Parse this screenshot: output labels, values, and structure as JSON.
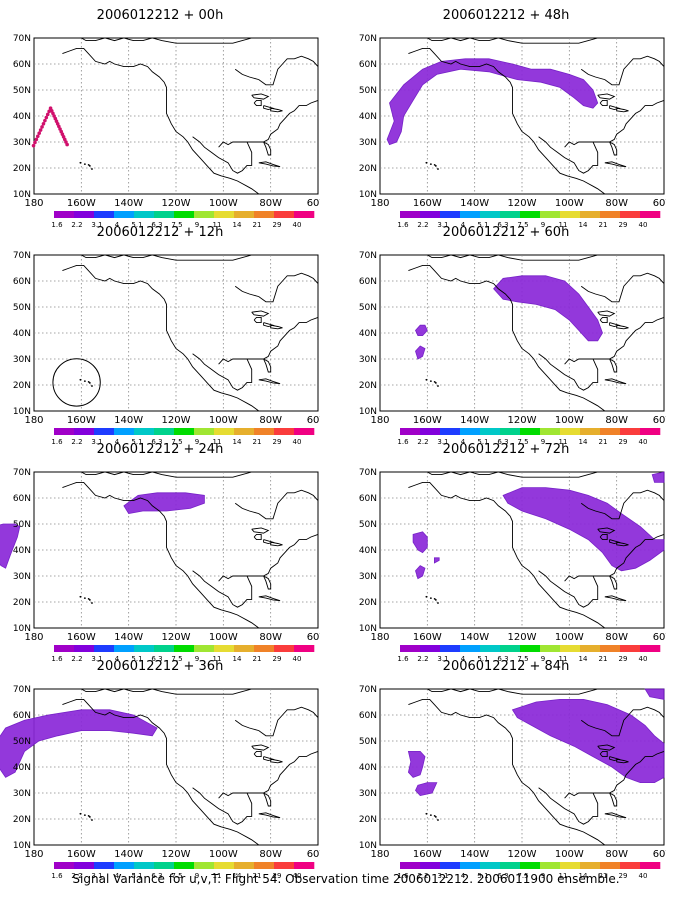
{
  "colorbar": {
    "labels": [
      "1.6",
      "2.2",
      "3.1",
      "4",
      "5.1",
      "6.3",
      "7.5",
      "9",
      "11",
      "14",
      "21",
      "29",
      "40"
    ],
    "colors": [
      "#a000c8",
      "#8200dc",
      "#1e3cff",
      "#00a0ff",
      "#00c8c8",
      "#00d28c",
      "#00dc00",
      "#a0e632",
      "#e6dc32",
      "#e6af2d",
      "#f08228",
      "#fa3c3c",
      "#f00082"
    ]
  },
  "map": {
    "lat_labels": [
      "70N",
      "60N",
      "50N",
      "40N",
      "30N",
      "20N",
      "10N"
    ],
    "lon_labels": [
      "180",
      "160W",
      "140W",
      "120W",
      "100W",
      "80W",
      "60W"
    ]
  },
  "panels": [
    {
      "title": "2006012212 + 00h"
    },
    {
      "title": "2006012212 + 48h"
    },
    {
      "title": "2006012212 + 12h"
    },
    {
      "title": "2006012212 + 60h"
    },
    {
      "title": "2006012212 + 24h"
    },
    {
      "title": "2006012212 + 72h"
    },
    {
      "title": "2006012212 + 36h"
    },
    {
      "title": "2006012212 + 84h"
    }
  ],
  "footer": "Signal Variance for u,v,T. Flight 54. Observation time 2006012212. 2006011900 ensemble."
}
